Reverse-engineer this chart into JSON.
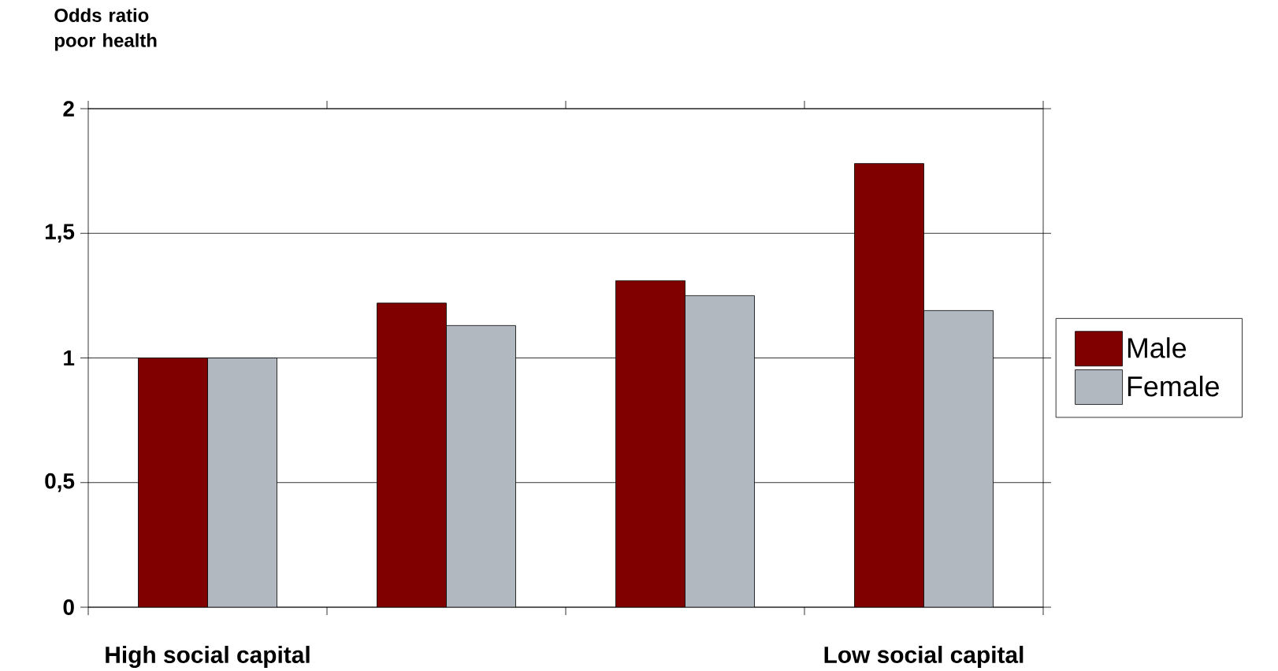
{
  "chart_data": {
    "type": "bar",
    "ylabel": "Odds ratio poor health",
    "categories": [
      "High social capital",
      null,
      null,
      "Low social capital"
    ],
    "series": [
      {
        "name": "Male",
        "color": "#800000",
        "values": [
          1.0,
          1.22,
          1.31,
          1.78
        ]
      },
      {
        "name": "Female",
        "color": "#b2b8bf",
        "values": [
          1.0,
          1.13,
          1.25,
          1.19
        ]
      }
    ],
    "ylim": [
      0,
      2
    ],
    "yticks": [
      0,
      {
        "value": 0.5,
        "label": "0,5"
      },
      1,
      {
        "value": 1.5,
        "label": "1,5"
      },
      2
    ],
    "grid": "y",
    "legend": "right"
  }
}
